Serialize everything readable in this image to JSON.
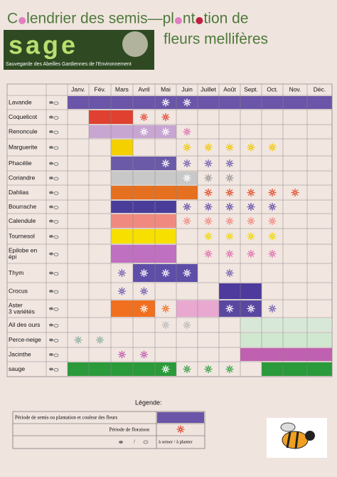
{
  "header": {
    "title_line1": [
      "C",
      "lendrier des semis—pl",
      "nt",
      "tion de"
    ],
    "title_line2": "fleurs mellifères",
    "logo": "sage",
    "logo_subtitle": "Sauvegarde des Abeilles Gardiennes de l'Environnement"
  },
  "table": {
    "months": [
      "Janv.",
      "Fév.",
      "Mars",
      "Avril",
      "Mai",
      "Juin",
      "Juillet",
      "Août",
      "Sept.",
      "Oct.",
      "Nov.",
      "Déc."
    ],
    "rows": [
      {
        "name": [
          "Lavande"
        ]
      },
      {
        "name": [
          "Coquelicot"
        ]
      },
      {
        "name": [
          "Renoncule"
        ]
      },
      {
        "name": [
          "Marguerite"
        ]
      },
      {
        "name": [
          "Phacélie"
        ]
      },
      {
        "name": [
          "Coriandre"
        ]
      },
      {
        "name": [
          "Dahlias"
        ]
      },
      {
        "name": [
          "Bourrache"
        ]
      },
      {
        "name": [
          "Calendule"
        ]
      },
      {
        "name": [
          "Tournesol"
        ]
      },
      {
        "name": [
          "Epilobe en",
          "épi"
        ]
      },
      {
        "name": [
          "Thym"
        ]
      },
      {
        "name": [
          "Crocus"
        ]
      },
      {
        "name": [
          "Aster",
          "3 variétés"
        ]
      },
      {
        "name": [
          "Ail des ours"
        ]
      },
      {
        "name": [
          "Perce-neige"
        ]
      },
      {
        "name": [
          "Jacinthe"
        ]
      },
      {
        "name": [
          "sauge"
        ]
      }
    ]
  },
  "legend": {
    "title": "Légende:",
    "row1": "Période de semis ou plantation et couleur des fleurs",
    "row2": "Période de floraison",
    "separator": "/",
    "row3": "à semer / à planter"
  }
}
